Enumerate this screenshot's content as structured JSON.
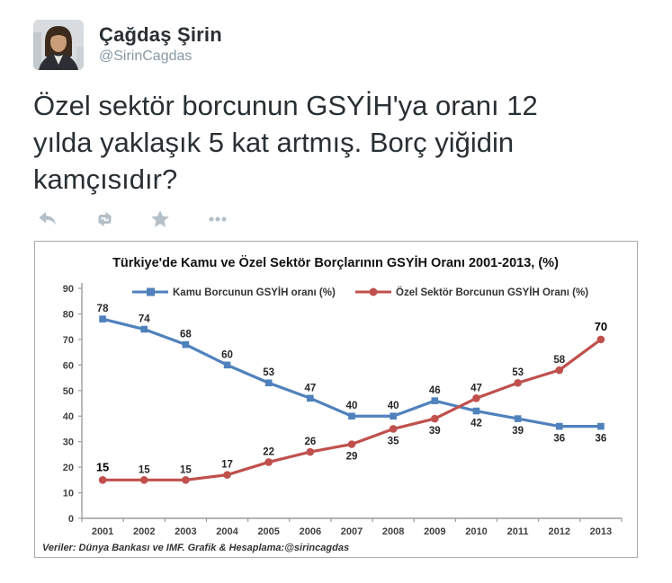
{
  "tweet": {
    "author_name": "Çağdaş Şirin",
    "author_handle": "@SirinCagdas",
    "text_lines": [
      "Özel sektör borcunun GSYİH'ya oranı 12",
      "yılda yaklaşık 5 kat artmış. Borç yiğidin",
      "kamçısıdır?"
    ],
    "actions": [
      "reply",
      "retweet",
      "favorite",
      "more"
    ]
  },
  "colors": {
    "tweet_text": "#292f33",
    "handle_gray": "#8899a6",
    "action_icon": "#b3bfc9",
    "kamu_blue": "#4F81BD",
    "ozel_red": "#C0504D",
    "axis_gray": "#9c9c9c",
    "label_dark": "#262626"
  },
  "chart_data": {
    "type": "line",
    "title": "Türkiye'de Kamu ve Özel Sektör Borçlarının GSYİH Oranı 2001-2013, (%)",
    "categories": [
      "2001",
      "2002",
      "2003",
      "2004",
      "2005",
      "2006",
      "2007",
      "2008",
      "2009",
      "2010",
      "2011",
      "2012",
      "2013"
    ],
    "series": [
      {
        "name": "Kamu Borcunun GSYİH oranı (%)",
        "color": "#4F81BD",
        "marker": "square",
        "values": [
          78,
          74,
          68,
          60,
          53,
          47,
          40,
          40,
          46,
          42,
          39,
          36,
          36
        ],
        "label_positions": [
          "above",
          "above",
          "above",
          "above",
          "above",
          "above",
          "above",
          "above",
          "above",
          "below",
          "below",
          "below",
          "below"
        ],
        "bold_labels": []
      },
      {
        "name": "Özel Sektör Borcunun GSYİH Oranı (%)",
        "color": "#C0504D",
        "marker": "circle",
        "values": [
          15,
          15,
          15,
          17,
          22,
          26,
          29,
          35,
          39,
          47,
          53,
          58,
          70
        ],
        "label_positions": [
          "above",
          "above",
          "above",
          "above",
          "above",
          "above",
          "below",
          "below",
          "below",
          "above",
          "above",
          "above",
          "above"
        ],
        "bold_labels": [
          0,
          12
        ]
      }
    ],
    "ylim": [
      0,
      90
    ],
    "ytick_step": 10,
    "grid": false,
    "legend_position": "top",
    "source_note": "Veriler: Dünya Bankası ve IMF. Grafik & Hesaplama:@sirincagdas"
  }
}
